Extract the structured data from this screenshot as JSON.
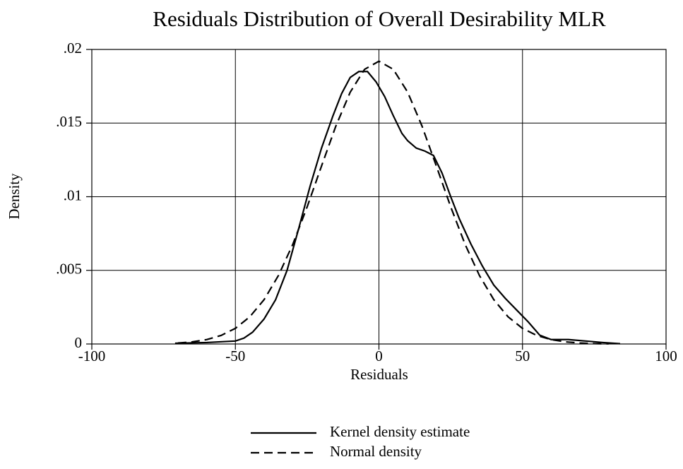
{
  "chart_data": {
    "type": "line",
    "title": "Residuals Distribution of Overall Desirability MLR",
    "xlabel": "Residuals",
    "ylabel": "Density",
    "xlim": [
      -100,
      100
    ],
    "xticks": [
      -100,
      -50,
      0,
      50,
      100
    ],
    "ylim": [
      0,
      0.02
    ],
    "yticks": [
      0,
      {
        "value": 0.005,
        "label": ".005"
      },
      {
        "value": 0.01,
        "label": ".01"
      },
      {
        "value": 0.015,
        "label": ".015"
      },
      {
        "value": 0.02,
        "label": ".02"
      }
    ],
    "grid": true,
    "legend": "bottom",
    "series": [
      {
        "name": "Kernel density estimate",
        "color": "#000000",
        "dash": "solid",
        "x": [
          -71,
          -60,
          -50,
          -47,
          -44,
          -40,
          -36,
          -32,
          -28,
          -24,
          -20,
          -16,
          -13,
          -10,
          -7,
          -4,
          -1,
          2,
          5,
          8,
          10,
          13,
          16,
          19,
          22,
          25,
          28,
          32,
          36,
          40,
          44,
          48,
          52,
          56,
          60,
          66,
          72,
          78,
          84
        ],
        "values": [
          5e-05,
          0.0001,
          0.0002,
          0.0004,
          0.0008,
          0.0017,
          0.003,
          0.005,
          0.0078,
          0.0107,
          0.0133,
          0.0155,
          0.017,
          0.0181,
          0.0185,
          0.0185,
          0.0178,
          0.0168,
          0.0155,
          0.0143,
          0.0138,
          0.0133,
          0.0131,
          0.0128,
          0.0116,
          0.01,
          0.0085,
          0.0068,
          0.0053,
          0.004,
          0.0031,
          0.0023,
          0.0015,
          0.0006,
          0.0003,
          0.0003,
          0.0002,
          0.0001,
          2e-05
        ]
      },
      {
        "name": "Normal density",
        "color": "#000000",
        "dash": "dashed",
        "x": [
          -70,
          -65,
          -60,
          -55,
          -50,
          -45,
          -40,
          -35,
          -30,
          -25,
          -20,
          -15,
          -10,
          -5,
          0,
          5,
          10,
          15,
          20,
          25,
          30,
          35,
          40,
          45,
          50,
          55,
          60,
          65,
          70,
          75,
          80
        ],
        "values": [
          6.6e-05,
          0.000144,
          0.000297,
          0.000578,
          0.00106,
          0.00184,
          0.00301,
          0.00465,
          0.00677,
          0.00931,
          0.01208,
          0.0148,
          0.0171,
          0.01865,
          0.0192,
          0.01865,
          0.0171,
          0.0148,
          0.01208,
          0.00931,
          0.00677,
          0.00465,
          0.00301,
          0.00184,
          0.00106,
          0.000578,
          0.000297,
          0.000144,
          6.6e-05,
          2.7e-05,
          1.16e-05
        ]
      }
    ]
  }
}
